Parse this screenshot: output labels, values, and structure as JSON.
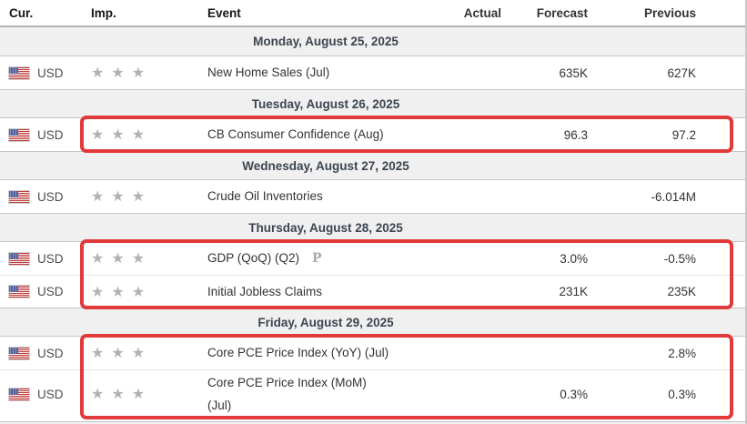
{
  "table": {
    "star_glyph": "★",
    "columns": [
      {
        "key": "cur",
        "label": "Cur."
      },
      {
        "key": "imp",
        "label": "Imp."
      },
      {
        "key": "event",
        "label": "Event"
      },
      {
        "key": "actual",
        "label": "Actual"
      },
      {
        "key": "forecast",
        "label": "Forecast"
      },
      {
        "key": "previous",
        "label": "Previous"
      }
    ],
    "rows": [
      {
        "type": "day",
        "label": "Monday, August 25, 2025"
      },
      {
        "type": "event",
        "currency": "USD",
        "flag_icon": "us-flag-icon",
        "importance": 3,
        "event": "New Home Sales (Jul)",
        "actual": "",
        "forecast": "635K",
        "previous": "627K"
      },
      {
        "type": "day",
        "label": "Tuesday, August 26, 2025"
      },
      {
        "type": "event",
        "currency": "USD",
        "flag_icon": "us-flag-icon",
        "importance": 3,
        "event": "CB Consumer Confidence (Aug)",
        "actual": "",
        "forecast": "96.3",
        "previous": "97.2"
      },
      {
        "type": "day",
        "label": "Wednesday, August 27, 2025"
      },
      {
        "type": "event",
        "currency": "USD",
        "flag_icon": "us-flag-icon",
        "importance": 3,
        "event": "Crude Oil Inventories",
        "actual": "",
        "forecast": "",
        "previous": "-6.014M"
      },
      {
        "type": "day",
        "label": "Thursday, August 28, 2025"
      },
      {
        "type": "event",
        "currency": "USD",
        "flag_icon": "us-flag-icon",
        "importance": 3,
        "event": "GDP (QoQ) (Q2)",
        "preliminary_label": "P",
        "actual": "",
        "forecast": "3.0%",
        "previous": "-0.5%"
      },
      {
        "type": "event",
        "currency": "USD",
        "flag_icon": "us-flag-icon",
        "importance": 3,
        "event": "Initial Jobless Claims",
        "actual": "",
        "forecast": "231K",
        "previous": "235K"
      },
      {
        "type": "day",
        "label": "Friday, August 29, 2025"
      },
      {
        "type": "event",
        "currency": "USD",
        "flag_icon": "us-flag-icon",
        "importance": 3,
        "event": "Core PCE Price Index (YoY) (Jul)",
        "actual": "",
        "forecast": "",
        "previous": "2.8%"
      },
      {
        "type": "event",
        "currency": "USD",
        "flag_icon": "us-flag-icon",
        "importance": 3,
        "event": "Core PCE Price Index (MoM) (Jul)",
        "event_lines": [
          "Core PCE Price Index (MoM)",
          "(Jul)"
        ],
        "actual": "",
        "forecast": "0.3%",
        "previous": "0.3%",
        "tall": true
      }
    ]
  },
  "annotations": {
    "highlight_color": "#e23a3a",
    "boxes": [
      {
        "name": "highlight-cb-consumer-confidence",
        "rows": [
          3,
          3
        ]
      },
      {
        "name": "highlight-gdp-and-jobless-claims",
        "rows": [
          7,
          8
        ]
      },
      {
        "name": "highlight-core-pce-price-index",
        "rows": [
          10,
          11
        ]
      }
    ]
  }
}
